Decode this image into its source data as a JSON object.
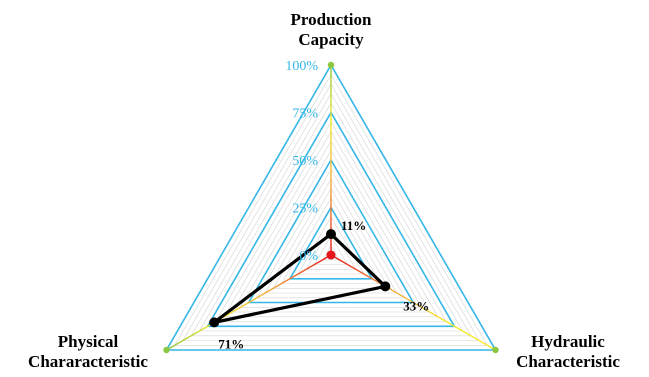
{
  "chart_data": {
    "type": "radar",
    "axes": [
      {
        "key": "top",
        "title_lines": [
          "Production",
          "Capacity"
        ]
      },
      {
        "key": "right",
        "title_lines": [
          "Hydraulic",
          "Characteristic"
        ]
      },
      {
        "key": "left",
        "title_lines": [
          "Physical",
          "Chararacteristic"
        ]
      }
    ],
    "ticks": [
      {
        "value": 0,
        "label": "0%"
      },
      {
        "value": 25,
        "label": "25%"
      },
      {
        "value": 50,
        "label": "50%"
      },
      {
        "value": 75,
        "label": "75%"
      },
      {
        "value": 100,
        "label": "100%"
      }
    ],
    "range": [
      0,
      100
    ],
    "series": [
      {
        "values": [
          11,
          33,
          71
        ],
        "labels": [
          "11%",
          "33%",
          "71%"
        ],
        "color": "#000000"
      }
    ],
    "grid": true,
    "colors": {
      "grid_major": "#35b6e6",
      "grid_minor": "#d4d4d4",
      "tick_label": "#35b6e6",
      "center_marker": "#e8141b",
      "spoke_gradient": [
        "#e8141b",
        "#f2a43a",
        "#f4ea2d",
        "#8dc63f"
      ],
      "vertex_marker": "#8dc63f"
    }
  }
}
